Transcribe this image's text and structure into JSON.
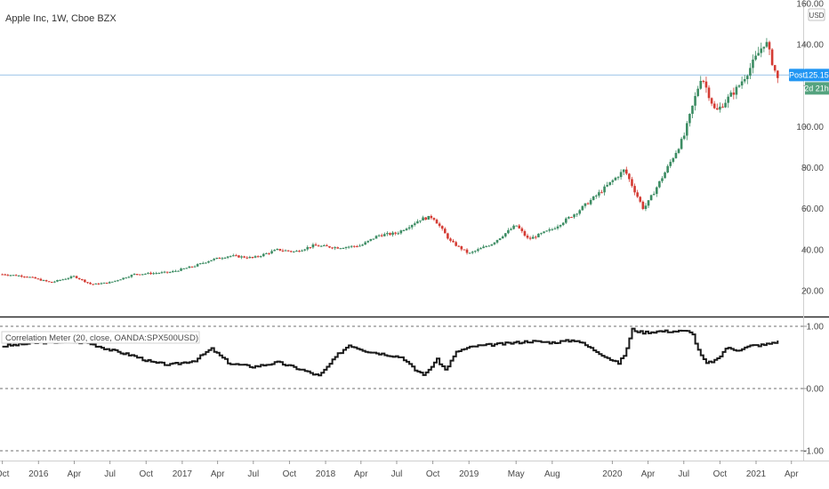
{
  "chart_data": [
    {
      "type": "candlestick",
      "title": "Apple Inc, 1W, Cboe BZX",
      "currency": "USD",
      "price_line": 125.15,
      "ylim": [
        10,
        160
      ],
      "yticks": [
        20,
        40,
        60,
        80,
        100,
        120,
        140,
        160
      ],
      "ytick_labels": [
        "20.00",
        "40.00",
        "60.00",
        "80.00",
        "100.00",
        "",
        "140.00",
        "160.00"
      ],
      "last_price_label": "125.15",
      "session_label": "Post",
      "countdown_label": "2d 21h",
      "up_color": "#3c8c63",
      "down_color": "#d43b33",
      "price_line_color": "#9ec4e8",
      "anchors": [
        [
          "2015-10-01",
          28
        ],
        [
          "2015-12-01",
          27
        ],
        [
          "2016-02-01",
          24
        ],
        [
          "2016-04-01",
          27
        ],
        [
          "2016-05-15",
          23
        ],
        [
          "2016-07-01",
          24
        ],
        [
          "2016-09-01",
          28
        ],
        [
          "2016-12-01",
          29
        ],
        [
          "2017-02-01",
          32
        ],
        [
          "2017-03-15",
          35
        ],
        [
          "2017-05-01",
          37
        ],
        [
          "2017-07-01",
          36
        ],
        [
          "2017-09-01",
          40
        ],
        [
          "2017-10-15",
          39
        ],
        [
          "2017-12-01",
          42
        ],
        [
          "2018-02-01",
          41
        ],
        [
          "2018-04-01",
          42
        ],
        [
          "2018-05-15",
          47
        ],
        [
          "2018-07-01",
          48
        ],
        [
          "2018-09-01",
          55
        ],
        [
          "2018-10-01",
          56
        ],
        [
          "2018-11-15",
          44
        ],
        [
          "2019-01-01",
          38
        ],
        [
          "2019-03-01",
          43
        ],
        [
          "2019-05-01",
          52
        ],
        [
          "2019-06-01",
          45
        ],
        [
          "2019-08-01",
          50
        ],
        [
          "2019-10-01",
          58
        ],
        [
          "2019-12-01",
          68
        ],
        [
          "2020-02-01",
          79
        ],
        [
          "2020-03-20",
          60
        ],
        [
          "2020-04-01",
          63
        ],
        [
          "2020-05-15",
          78
        ],
        [
          "2020-07-01",
          95
        ],
        [
          "2020-08-15",
          125
        ],
        [
          "2020-09-20",
          107
        ],
        [
          "2020-11-15",
          119
        ],
        [
          "2020-12-15",
          128
        ],
        [
          "2021-01-25",
          142
        ],
        [
          "2021-02-25",
          123
        ]
      ],
      "x_range": [
        "2015-09-25",
        "2021-05-01"
      ],
      "x_tick_labels": [
        {
          "date": "2015-10-01",
          "label": "Oct"
        },
        {
          "date": "2016-01-01",
          "label": "2016"
        },
        {
          "date": "2016-04-01",
          "label": "Apr"
        },
        {
          "date": "2016-07-01",
          "label": "Jul"
        },
        {
          "date": "2016-10-01",
          "label": "Oct"
        },
        {
          "date": "2017-01-01",
          "label": "2017"
        },
        {
          "date": "2017-04-01",
          "label": "Apr"
        },
        {
          "date": "2017-07-01",
          "label": "Jul"
        },
        {
          "date": "2017-10-01",
          "label": "Oct"
        },
        {
          "date": "2018-01-01",
          "label": "2018"
        },
        {
          "date": "2018-04-01",
          "label": "Apr"
        },
        {
          "date": "2018-07-01",
          "label": "Jul"
        },
        {
          "date": "2018-10-01",
          "label": "Oct"
        },
        {
          "date": "2019-01-01",
          "label": "2019"
        },
        {
          "date": "2019-05-01",
          "label": "May"
        },
        {
          "date": "2019-08-01",
          "label": "Aug"
        },
        {
          "date": "2020-01-01",
          "label": "2020"
        },
        {
          "date": "2020-04-01",
          "label": "Apr"
        },
        {
          "date": "2020-07-01",
          "label": "Jul"
        },
        {
          "date": "2020-10-01",
          "label": "Oct"
        },
        {
          "date": "2021-01-01",
          "label": "2021"
        },
        {
          "date": "2021-04-01",
          "label": "Apr"
        }
      ]
    },
    {
      "type": "line",
      "title": "Correlation Meter (20, close, OANDA:SPX500USD)",
      "ylim": [
        -1.1,
        1.1
      ],
      "reference_lines": [
        1.0,
        0.0,
        -1.0
      ],
      "ytick_labels": [
        "1.00",
        "0.00",
        "-1.00"
      ],
      "line_color": "#1a1a1a",
      "anchors": [
        [
          "2015-10-01",
          0.68
        ],
        [
          "2016-01-01",
          0.74
        ],
        [
          "2016-03-15",
          0.75
        ],
        [
          "2016-05-01",
          0.74
        ],
        [
          "2016-07-01",
          0.62
        ],
        [
          "2016-09-01",
          0.52
        ],
        [
          "2016-10-15",
          0.42
        ],
        [
          "2016-12-01",
          0.38
        ],
        [
          "2017-02-01",
          0.45
        ],
        [
          "2017-03-15",
          0.64
        ],
        [
          "2017-05-01",
          0.4
        ],
        [
          "2017-07-01",
          0.35
        ],
        [
          "2017-09-01",
          0.42
        ],
        [
          "2017-11-01",
          0.3
        ],
        [
          "2017-12-15",
          0.2
        ],
        [
          "2018-02-01",
          0.55
        ],
        [
          "2018-03-01",
          0.7
        ],
        [
          "2018-04-15",
          0.6
        ],
        [
          "2018-06-01",
          0.55
        ],
        [
          "2018-07-15",
          0.5
        ],
        [
          "2018-08-15",
          0.3
        ],
        [
          "2018-09-10",
          0.22
        ],
        [
          "2018-10-10",
          0.47
        ],
        [
          "2018-11-01",
          0.3
        ],
        [
          "2018-12-01",
          0.6
        ],
        [
          "2019-01-15",
          0.68
        ],
        [
          "2019-04-01",
          0.72
        ],
        [
          "2019-06-01",
          0.76
        ],
        [
          "2019-08-01",
          0.74
        ],
        [
          "2019-10-01",
          0.78
        ],
        [
          "2019-12-01",
          0.56
        ],
        [
          "2020-01-15",
          0.4
        ],
        [
          "2020-02-01",
          0.55
        ],
        [
          "2020-02-20",
          0.95
        ],
        [
          "2020-03-15",
          0.9
        ],
        [
          "2020-05-01",
          0.92
        ],
        [
          "2020-07-20",
          0.92
        ],
        [
          "2020-08-05",
          0.62
        ],
        [
          "2020-08-25",
          0.4
        ],
        [
          "2020-09-25",
          0.47
        ],
        [
          "2020-10-15",
          0.65
        ],
        [
          "2020-11-15",
          0.62
        ],
        [
          "2020-12-20",
          0.69
        ],
        [
          "2021-01-20",
          0.7
        ],
        [
          "2021-02-25",
          0.76
        ]
      ]
    }
  ]
}
